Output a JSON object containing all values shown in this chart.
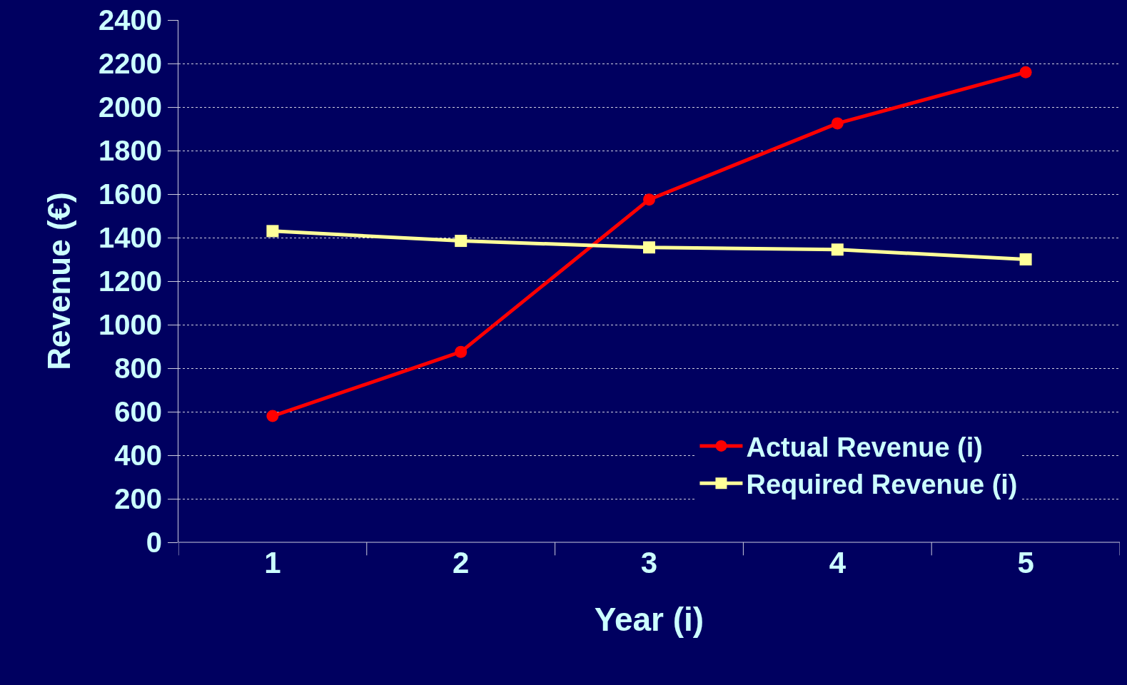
{
  "chart_data": {
    "type": "line",
    "xlabel": "Year (i)",
    "ylabel": "Revenue (€)",
    "categories": [
      "1",
      "2",
      "3",
      "4",
      "5"
    ],
    "series": [
      {
        "name": "Actual Revenue (i)",
        "color": "#ff0000",
        "marker": "circle",
        "values": [
          580,
          875,
          1575,
          1925,
          2160
        ]
      },
      {
        "name": "Required Revenue (i)",
        "color": "#ffff99",
        "marker": "square",
        "values": [
          1430,
          1385,
          1355,
          1345,
          1300
        ]
      }
    ],
    "ylim": [
      0,
      2400
    ],
    "yticks": [
      0,
      200,
      400,
      600,
      800,
      1000,
      1200,
      1400,
      1600,
      1800,
      2000,
      2200,
      2400
    ],
    "grid": "y",
    "legend": "bottom right",
    "line_style": "solid"
  }
}
